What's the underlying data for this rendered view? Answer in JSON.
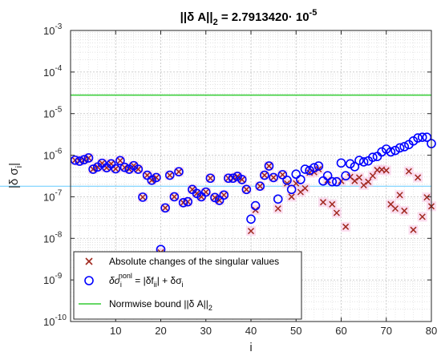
{
  "chart_data": {
    "type": "scatter",
    "title": {
      "prefix": "||δ A||",
      "sub": "2",
      "mid": " =  2.7913420· 10",
      "sup": "-5"
    },
    "xlabel": "i",
    "ylabel": {
      "main": "|δ σ",
      "sub": "i",
      "end": "|"
    },
    "xlim": [
      0,
      80
    ],
    "ylim": [
      1e-10,
      0.001
    ],
    "yscale": "log",
    "grid": true,
    "x_ticks": [
      10,
      20,
      30,
      40,
      50,
      60,
      70,
      80
    ],
    "y_ticks": [
      {
        "value": 1e-10,
        "base": "10",
        "exp": "-10"
      },
      {
        "value": 1e-09,
        "base": "10",
        "exp": "-9"
      },
      {
        "value": 1e-08,
        "base": "10",
        "exp": "-8"
      },
      {
        "value": 1e-07,
        "base": "10",
        "exp": "-7"
      },
      {
        "value": 1e-06,
        "base": "10",
        "exp": "-6"
      },
      {
        "value": 1e-05,
        "base": "10",
        "exp": "-5"
      },
      {
        "value": 0.0001,
        "base": "10",
        "exp": "-4"
      },
      {
        "value": 0.001,
        "base": "10",
        "exp": "-3"
      }
    ],
    "legend_position": "bottom-left",
    "legend": [
      {
        "text": "Absolute changes of the singular values"
      },
      {
        "pre": "δσ",
        "sub1": "i",
        "sup1": "nonl",
        "mid": " = |δf",
        "sub2": "ii",
        "end": "| + δσ",
        "sub3": "i"
      },
      {
        "text": "Normwise bound ||δ A||",
        "sub": "2"
      }
    ],
    "colors": {
      "cross": "#a0281e",
      "circle": "#0000ff",
      "bound": "#33cc33",
      "reference": "#66ccff",
      "shade": "#f7c4e3"
    },
    "normwise_bound": 2.791342e-05,
    "reference_level": 1.8e-07,
    "series": [
      {
        "marker": "x",
        "x": [
          1,
          2,
          3,
          4,
          5,
          6,
          7,
          8,
          9,
          10,
          11,
          12,
          13,
          14,
          15,
          16,
          17,
          18,
          19,
          20,
          21,
          22,
          23,
          24,
          25,
          26,
          27,
          28,
          29,
          30,
          31,
          32,
          33,
          34,
          35,
          36,
          37,
          38,
          39,
          40,
          41,
          42,
          43,
          44,
          45,
          46,
          47,
          48,
          49,
          50,
          51,
          52,
          53,
          54,
          55,
          56,
          57,
          58,
          59,
          60,
          61,
          62,
          63,
          64,
          65,
          66,
          67,
          68,
          69,
          70,
          71,
          72,
          73,
          74,
          75,
          76,
          77,
          78,
          79,
          80
        ],
        "y": [
          7.6e-07,
          7.2e-07,
          7.8e-07,
          8.6e-07,
          4.6e-07,
          5.2e-07,
          6.4e-07,
          5e-07,
          6.2e-07,
          4.7e-07,
          7.4e-07,
          5.1e-07,
          4.6e-07,
          5.6e-07,
          4.6e-07,
          9.8e-08,
          3.3e-07,
          2.5e-07,
          2.9e-07,
          4.6e-09,
          5.4e-08,
          3.3e-07,
          1e-07,
          4e-07,
          7.2e-08,
          7.6e-08,
          1.5e-07,
          1.2e-07,
          1e-07,
          1.3e-07,
          2.8e-07,
          9.6e-08,
          8.2e-08,
          1.1e-07,
          2.8e-07,
          2.8e-07,
          3.1e-07,
          2.6e-07,
          1.5e-07,
          1.5e-08,
          4.8e-08,
          1.8e-07,
          3.3e-07,
          5.5e-07,
          2.9e-07,
          5.2e-08,
          3.4e-07,
          2.1e-07,
          1e-07,
          2.1e-07,
          1.3e-07,
          1.6e-07,
          3.8e-07,
          3.9e-07,
          4.6e-07,
          7.4e-08,
          2.5e-07,
          6.6e-08,
          4.1e-08,
          2.4e-07,
          1.9e-08,
          3e-07,
          2.4e-07,
          2.9e-07,
          1.9e-07,
          2.3e-07,
          3.2e-07,
          4.4e-07,
          4.5e-07,
          4.3e-07,
          6.6e-08,
          5.2e-08,
          1.1e-07,
          4.6e-08,
          4.1e-07,
          1.6e-08,
          2.9e-07,
          3.3e-08,
          9.7e-08,
          5.9e-08
        ]
      },
      {
        "marker": "o",
        "x": [
          1,
          2,
          3,
          4,
          5,
          6,
          7,
          8,
          9,
          10,
          11,
          12,
          13,
          14,
          15,
          16,
          17,
          18,
          19,
          20,
          21,
          22,
          23,
          24,
          25,
          26,
          27,
          28,
          29,
          30,
          31,
          32,
          33,
          34,
          35,
          36,
          37,
          38,
          39,
          40,
          41,
          42,
          43,
          44,
          45,
          46,
          47,
          48,
          49,
          50,
          51,
          52,
          53,
          54,
          55,
          56,
          57,
          58,
          59,
          60,
          61,
          62,
          63,
          64,
          65,
          66,
          67,
          68,
          69,
          70,
          71,
          72,
          73,
          74,
          75,
          76,
          77,
          78,
          79,
          80
        ],
        "y": [
          7.6e-07,
          7.2e-07,
          7.8e-07,
          8.6e-07,
          4.6e-07,
          5.2e-07,
          6.4e-07,
          5e-07,
          6.2e-07,
          4.7e-07,
          7.4e-07,
          5.1e-07,
          4.6e-07,
          5.6e-07,
          4.6e-07,
          9.8e-08,
          3.3e-07,
          2.5e-07,
          2.9e-07,
          5.4e-09,
          5.4e-08,
          3.3e-07,
          1e-07,
          4e-07,
          7.2e-08,
          7.6e-08,
          1.5e-07,
          1.2e-07,
          1e-07,
          1.3e-07,
          2.8e-07,
          9.6e-08,
          8.2e-08,
          1.1e-07,
          2.8e-07,
          2.8e-07,
          3.1e-07,
          2.6e-07,
          1.5e-07,
          2.9e-08,
          6.1e-08,
          1.8e-07,
          3.3e-07,
          5.5e-07,
          2.9e-07,
          8.8e-08,
          3.4e-07,
          2.5e-07,
          1.5e-07,
          3.5e-07,
          2.6e-07,
          4.6e-07,
          4.3e-07,
          5e-07,
          5.5e-07,
          2.4e-07,
          3.2e-07,
          2.3e-07,
          2.3e-07,
          6.5e-07,
          3.2e-07,
          6.2e-07,
          5.3e-07,
          7.5e-07,
          6.9e-07,
          7.3e-07,
          8.9e-07,
          9.3e-07,
          1.2e-06,
          1.4e-06,
          1.2e-06,
          1.3e-06,
          1.5e-06,
          1.6e-06,
          1.8e-06,
          2.2e-06,
          2.6e-06,
          2.7e-06,
          2.7e-06,
          1.9e-06
        ]
      }
    ]
  }
}
